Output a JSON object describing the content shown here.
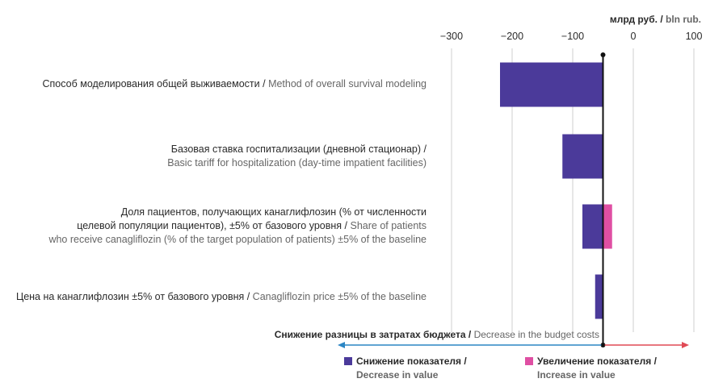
{
  "chart_data": {
    "type": "bar",
    "orientation": "horizontal",
    "subtype": "tornado",
    "unit_label_ru": "млрд руб.",
    "unit_label_en": "bln rub.",
    "x_ticks": [
      -300,
      -200,
      -100,
      0,
      100
    ],
    "xlim": [
      -330,
      105
    ],
    "baseline": -50,
    "categories": [
      {
        "ru": "Способ моделирования общей выживаемости / ",
        "en": "Method of overall survival modeling"
      },
      {
        "ru": "Базовая ставка госпитализации (дневной стационар) /",
        "en": "Basic tariff for hospitalization (day-time impatient facilities)"
      },
      {
        "ru": "Доля пациентов, получающих канаглифлозин (% от численности целевой популяции пациентов), ±5% от базового уровня / ",
        "en": "Share of patients who receive canagliflozin (% of the target population of patients) ±5% of the baseline"
      },
      {
        "ru": "Цена на канаглифлозин ±5% от базового уровня / ",
        "en": "Canagliflozin price ±5% of the baseline"
      }
    ],
    "series": [
      {
        "name": "Снижение показателя / Decrease in value",
        "values": [
          -220,
          -117,
          -84,
          -63
        ]
      },
      {
        "name": "Увеличение показателя / Increase in value",
        "values": [
          null,
          null,
          -35,
          null
        ]
      }
    ],
    "colors": {
      "decrease": "#4b3a9a",
      "increase": "#df4fa3",
      "arrow_left": "#2b86c4",
      "arrow_right": "#e04a55",
      "grid": "#cfcfcf"
    },
    "grid": true,
    "annotation_ru": "Снижение разницы в затратах бюджета / ",
    "annotation_en": "Decrease in the budget costs",
    "legend": {
      "placement": "bottom",
      "decrease_ru": "Снижение показателя /",
      "decrease_en": "Decrease in value",
      "increase_ru": "Увеличение показателя /",
      "increase_en": "Increase in value"
    }
  }
}
